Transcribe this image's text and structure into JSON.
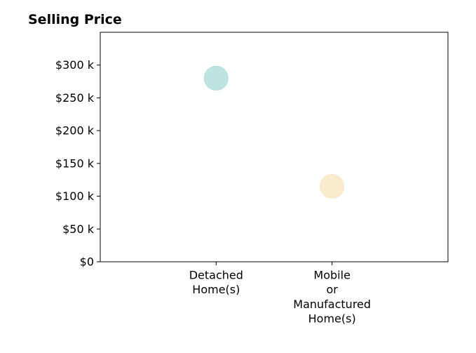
{
  "chart_data": {
    "type": "scatter",
    "title": "Selling Price",
    "xlabel": "",
    "ylabel": "",
    "categories": [
      [
        "Detached",
        "Home(s)"
      ],
      [
        "Mobile",
        "or",
        "Manufactured",
        "Home(s)"
      ]
    ],
    "points": [
      {
        "category_index": 0,
        "value": 280000,
        "color": "#b2dfdb"
      },
      {
        "category_index": 1,
        "value": 115000,
        "color": "#f8e7c5"
      }
    ],
    "ylim": [
      0,
      350000
    ],
    "yticks": [
      0,
      50000,
      100000,
      150000,
      200000,
      250000,
      300000
    ],
    "ytick_labels": [
      "$0",
      "$50 k",
      "$100 k",
      "$150 k",
      "$200 k",
      "$250 k",
      "$300 k"
    ],
    "xlim": [
      -1,
      2
    ],
    "grid": false,
    "legend": false
  }
}
